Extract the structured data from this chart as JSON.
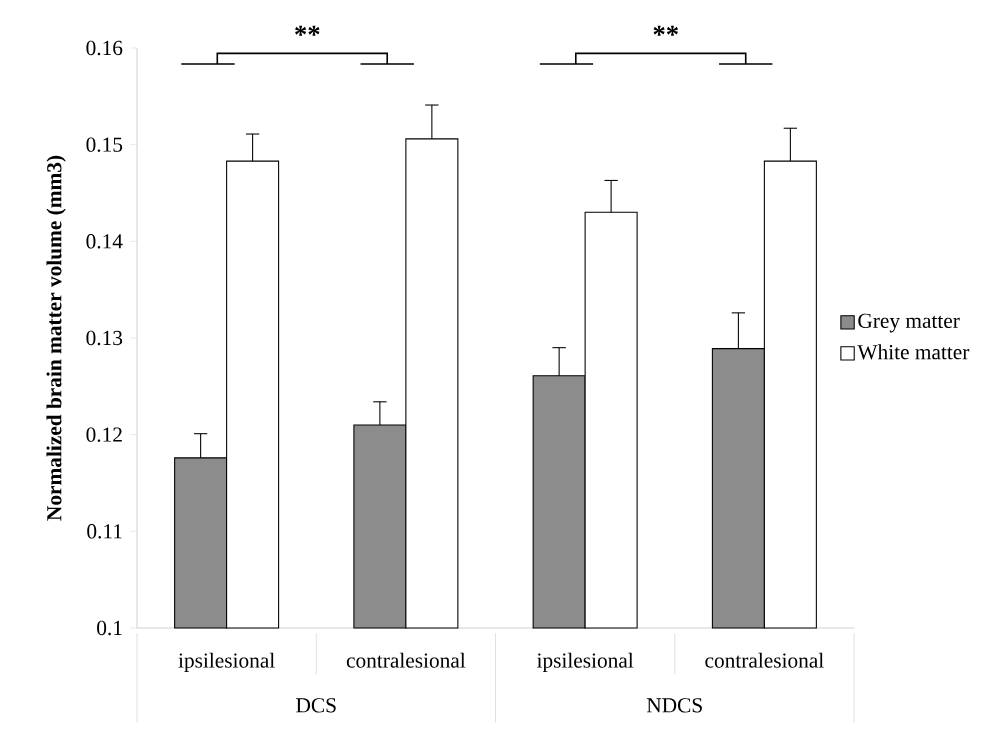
{
  "chart_data": {
    "type": "bar",
    "ylabel": "Normalized brain matter volume (mm3)",
    "categories": [
      "ipsilesional",
      "contralesional",
      "ipsilesional",
      "contralesional"
    ],
    "series": [
      {
        "name": "Grey matter",
        "color": "#8c8c8c",
        "values": [
          0.1176,
          0.121,
          0.1261,
          0.1289
        ],
        "errors": [
          0.0025,
          0.0024,
          0.0029,
          0.0037
        ]
      },
      {
        "name": "White matter",
        "color": "#ffffff",
        "values": [
          0.1483,
          0.1506,
          0.143,
          0.1483
        ],
        "errors": [
          0.0028,
          0.0035,
          0.0033,
          0.0034
        ]
      }
    ],
    "ylim": [
      0.1,
      0.16
    ],
    "yticks": [
      0.1,
      0.11,
      0.12,
      0.13,
      0.14,
      0.15,
      0.16
    ],
    "annotations": [
      "**",
      "**",
      "DCS",
      "NDCS"
    ],
    "legend": "right",
    "grid": false
  }
}
